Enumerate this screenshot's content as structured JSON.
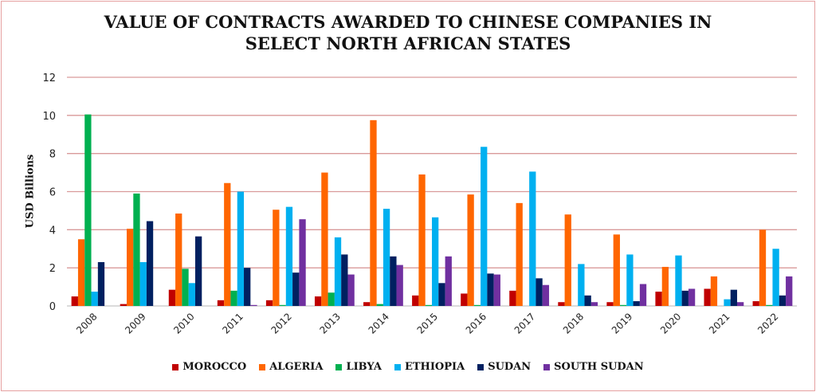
{
  "chart_data": {
    "type": "bar",
    "title": [
      "VALUE OF CONTRACTS AWARDED TO CHINESE COMPANIES IN",
      "SELECT NORTH AFRICAN STATES"
    ],
    "xlabel": "",
    "ylabel": "USD Billions",
    "ylim": [
      0,
      12
    ],
    "yticks": [
      "0",
      "2",
      "4",
      "6",
      "8",
      "10",
      "12"
    ],
    "grid": true,
    "legend_position": "bottom",
    "categories": [
      "2008",
      "2009",
      "2010",
      "2011",
      "2012",
      "2013",
      "2014",
      "2015",
      "2016",
      "2017",
      "2018",
      "2019",
      "2020",
      "2021",
      "2022"
    ],
    "series": [
      {
        "name": "MOROCCO",
        "color": "#c00000",
        "values": [
          0.5,
          0.1,
          0.85,
          0.3,
          0.3,
          0.5,
          0.2,
          0.55,
          0.65,
          0.8,
          0.2,
          0.2,
          0.75,
          0.9,
          0.25
        ]
      },
      {
        "name": "ALGERIA",
        "color": "#ff6600",
        "values": [
          3.5,
          4.05,
          4.85,
          6.45,
          5.05,
          7.0,
          9.75,
          6.9,
          5.85,
          5.4,
          4.8,
          3.75,
          2.05,
          1.55,
          4.0
        ]
      },
      {
        "name": "LIBYA",
        "color": "#00b050",
        "values": [
          10.05,
          5.9,
          1.95,
          0.8,
          0.05,
          0.7,
          0.1,
          0.05,
          0.05,
          0,
          0,
          0.05,
          0,
          0,
          0.05
        ]
      },
      {
        "name": "ETHIOPIA",
        "color": "#00b0f0",
        "values": [
          0.75,
          2.3,
          1.2,
          6.0,
          5.2,
          3.6,
          5.1,
          4.65,
          8.35,
          7.05,
          2.2,
          2.7,
          2.65,
          0.35,
          3.0
        ]
      },
      {
        "name": "SUDAN",
        "color": "#002060",
        "values": [
          2.3,
          4.45,
          3.65,
          2.0,
          1.75,
          2.7,
          2.6,
          1.2,
          1.7,
          1.45,
          0.55,
          0.25,
          0.8,
          0.85,
          0.55
        ]
      },
      {
        "name": "SOUTH SUDAN",
        "color": "#7030a0",
        "values": [
          0,
          0,
          0,
          0.05,
          4.55,
          1.65,
          2.15,
          2.6,
          1.65,
          1.1,
          0.2,
          1.15,
          0.9,
          0.2,
          1.55
        ]
      }
    ]
  }
}
